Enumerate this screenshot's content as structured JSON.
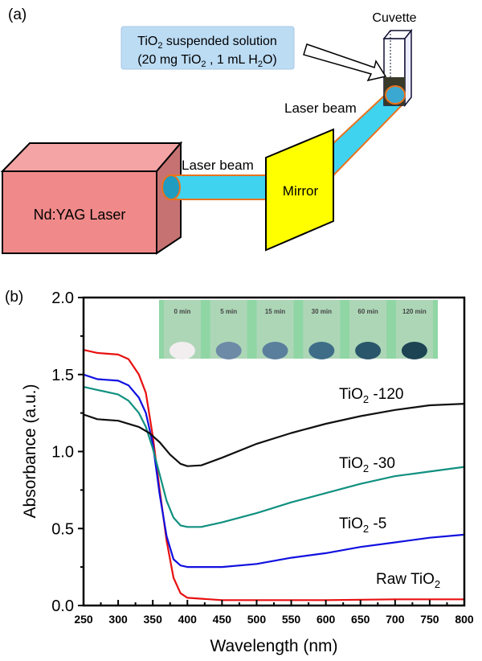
{
  "panel_a": {
    "label": "(a)",
    "solution_box": {
      "line1_pre": "TiO",
      "line1_sub": "2",
      "line1_post": " suspended solution",
      "line2_pre": "(20 mg TiO",
      "line2_sub": "2",
      "line2_mid": "  , 1 mL H",
      "line2_sub2": "2",
      "line2_post": "O)"
    },
    "cuvette_label": "Cuvette",
    "beam_label_1": "Laser beam",
    "beam_label_2": "Laser beam",
    "mirror_label": "Mirror",
    "laser_label": "Nd:YAG Laser",
    "colors": {
      "laser": "#f08a8a",
      "beam": "#3fd3f0",
      "beam_edge": "#e8731e",
      "mirror": "#ffff00",
      "box": "#bcdcf4"
    }
  },
  "panel_b": {
    "label": "(b)"
  },
  "inset": {
    "times": [
      "0 min",
      "5 min",
      "15 min",
      "30 min",
      "60 min",
      "120 min"
    ],
    "pellet_colors": [
      "#f2eef0",
      "#6d8aa6",
      "#5a7f9c",
      "#3f6d88",
      "#2a566c",
      "#1c4452"
    ]
  },
  "chart_data": {
    "type": "line",
    "xlabel": "Wavelength (nm)",
    "ylabel": "Absorbance (a.u.)",
    "xlim": [
      250,
      800
    ],
    "ylim": [
      0,
      2.0
    ],
    "xticks": [
      "250",
      "300",
      "350",
      "400",
      "450",
      "500",
      "550",
      "600",
      "650",
      "700",
      "750",
      "800"
    ],
    "yticks": [
      "0.0",
      "0.5",
      "1.0",
      "1.5",
      "2.0"
    ],
    "grid": false,
    "series": [
      {
        "name": "Raw TiO2",
        "label_pre": "Raw TiO",
        "label_sub": "2",
        "label_post": "",
        "color": "#e81010",
        "x": [
          250,
          270,
          300,
          315,
          330,
          340,
          350,
          360,
          370,
          380,
          390,
          400,
          450,
          500,
          600,
          700,
          800
        ],
        "y": [
          1.66,
          1.64,
          1.63,
          1.6,
          1.5,
          1.38,
          1.1,
          0.75,
          0.42,
          0.18,
          0.08,
          0.05,
          0.035,
          0.035,
          0.035,
          0.04,
          0.04
        ]
      },
      {
        "name": "TiO2 -5",
        "label_pre": "TiO",
        "label_sub": "2",
        "label_post": " -5",
        "color": "#1010e0",
        "x": [
          250,
          270,
          300,
          315,
          330,
          340,
          350,
          360,
          370,
          380,
          390,
          400,
          450,
          500,
          550,
          600,
          650,
          700,
          750,
          800
        ],
        "y": [
          1.5,
          1.47,
          1.46,
          1.43,
          1.35,
          1.25,
          1.05,
          0.72,
          0.45,
          0.3,
          0.26,
          0.25,
          0.25,
          0.27,
          0.31,
          0.34,
          0.38,
          0.41,
          0.44,
          0.46
        ]
      },
      {
        "name": "TiO2 -30",
        "label_pre": "TiO",
        "label_sub": "2",
        "label_post": " -30",
        "color": "#109080",
        "x": [
          250,
          270,
          300,
          315,
          330,
          340,
          350,
          360,
          370,
          380,
          390,
          400,
          420,
          450,
          500,
          550,
          600,
          650,
          700,
          750,
          800
        ],
        "y": [
          1.42,
          1.4,
          1.37,
          1.33,
          1.25,
          1.16,
          1.02,
          0.85,
          0.68,
          0.57,
          0.52,
          0.51,
          0.51,
          0.54,
          0.6,
          0.67,
          0.73,
          0.79,
          0.84,
          0.87,
          0.9
        ]
      },
      {
        "name": "TiO2 -120",
        "label_pre": "TiO",
        "label_sub": "2",
        "label_post": " -120",
        "color": "#101010",
        "x": [
          250,
          270,
          300,
          330,
          345,
          360,
          375,
          390,
          400,
          420,
          450,
          500,
          550,
          600,
          650,
          700,
          750,
          800
        ],
        "y": [
          1.24,
          1.21,
          1.2,
          1.16,
          1.12,
          1.06,
          0.98,
          0.92,
          0.905,
          0.91,
          0.96,
          1.05,
          1.12,
          1.18,
          1.23,
          1.27,
          1.3,
          1.31
        ]
      }
    ]
  }
}
